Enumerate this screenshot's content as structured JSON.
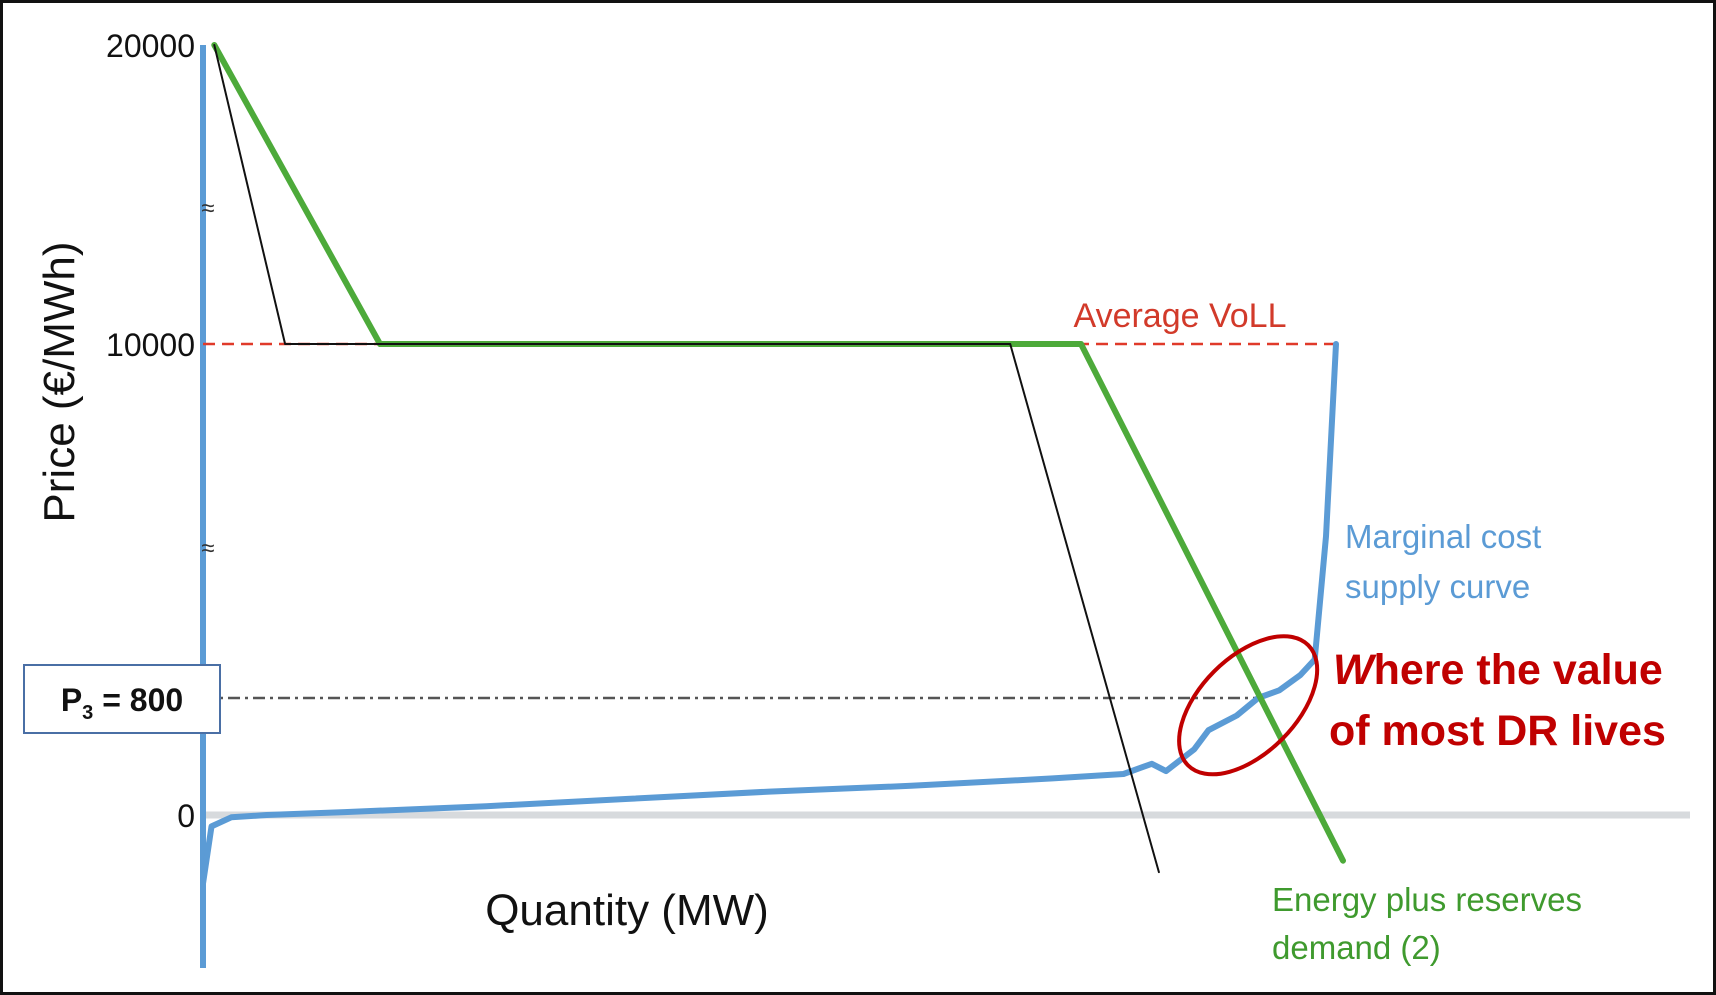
{
  "chart_data": {
    "type": "line",
    "title": "",
    "xlabel": "Quantity (MW)",
    "ylabel": "Price (€/MWh)",
    "y_axis_break": true,
    "y_tick_labels": [
      "20000",
      "10000",
      "0"
    ],
    "price_marker": {
      "label": "P",
      "subscript": "3",
      "suffix": " = 800",
      "value": 800
    },
    "reference_line": {
      "label": "Average VoLL",
      "value": 10000
    },
    "series": [
      {
        "name": "Marginal cost supply curve",
        "label_lines": [
          "Marginal cost",
          "supply curve"
        ],
        "color": "#5b9bd5",
        "x": [
          0,
          0.6,
          2.0,
          4.5,
          10,
          20,
          30,
          40,
          50,
          60,
          65,
          67,
          68,
          70,
          71,
          73,
          74.5,
          76,
          77.5,
          78.5,
          79.3,
          80
        ],
        "y": [
          -300,
          -50,
          -10,
          0,
          20,
          60,
          110,
          160,
          200,
          250,
          280,
          350,
          300,
          450,
          580,
          680,
          800,
          1000,
          1400,
          1800,
          5000,
          10000
        ]
      },
      {
        "name": "Energy plus reserves demand (2)",
        "label_lines": [
          "Energy plus reserves",
          "demand (2)"
        ],
        "color": "#4daa3a",
        "x": [
          0.8,
          12.5,
          62,
          80.5
        ],
        "y": [
          20000,
          10000,
          10000,
          -200
        ]
      },
      {
        "name": "",
        "color": "#111111",
        "x": [
          0.8,
          5.8,
          57,
          67.5
        ],
        "y": [
          20000,
          10000,
          10000,
          -250
        ]
      }
    ],
    "annotation": {
      "line1": "Where the value",
      "line1_lead": "W",
      "line1_rest": "here the value",
      "line2": "of most DR lives",
      "color": "#c00000"
    },
    "xlim": [
      0,
      105
    ],
    "ylim": [
      -350,
      20000
    ]
  }
}
